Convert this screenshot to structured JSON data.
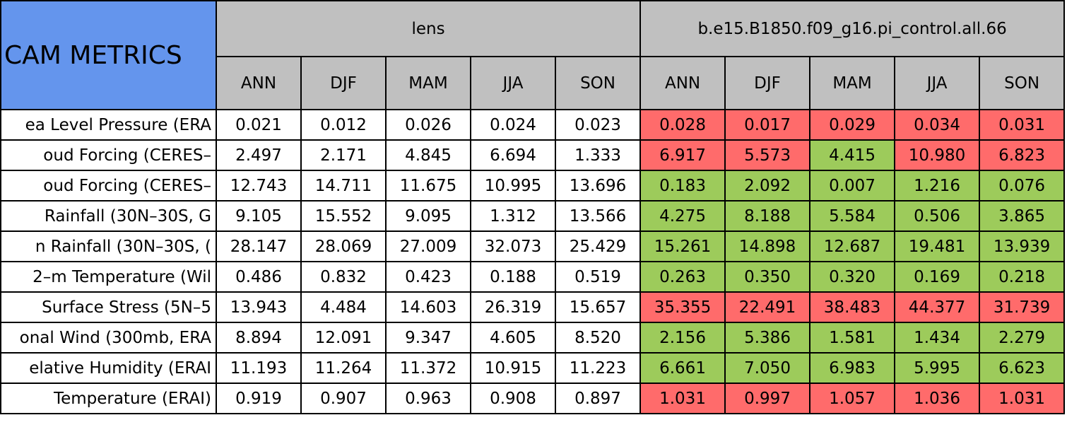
{
  "header": {
    "title": "CAM METRICS",
    "groups": [
      "lens",
      "b.e15.B1850.f09_g16.pi_control.all.66"
    ],
    "seasons": [
      [
        "ANN",
        "DJF",
        "MAM",
        "JJA",
        "SON"
      ],
      [
        "ANN",
        "DJF",
        "MAM",
        "JJA",
        "SON"
      ]
    ],
    "title_color": "#6495ed",
    "header_color": "#c0c0c0"
  },
  "table": {
    "rows": [
      {
        "label": "ea Level Pressure (ERA",
        "values": [
          "0.021",
          "0.012",
          "0.026",
          "0.024",
          "0.023",
          "0.028",
          "0.017",
          "0.029",
          "0.034",
          "0.031"
        ],
        "colors": [
          "#ffffff",
          "#ffffff",
          "#ffffff",
          "#ffffff",
          "#ffffff",
          "#ff6b6b",
          "#ff6b6b",
          "#ff6b6b",
          "#ff6b6b",
          "#ff6b6b"
        ]
      },
      {
        "label": "oud Forcing (CERES–",
        "values": [
          "2.497",
          "2.171",
          "4.845",
          "6.694",
          "1.333",
          "6.917",
          "5.573",
          "4.415",
          "10.980",
          "6.823"
        ],
        "colors": [
          "#ffffff",
          "#ffffff",
          "#ffffff",
          "#ffffff",
          "#ffffff",
          "#ff6b6b",
          "#ff6b6b",
          "#9dcb5b",
          "#ff6b6b",
          "#ff6b6b"
        ]
      },
      {
        "label": "oud Forcing (CERES–",
        "values": [
          "12.743",
          "14.711",
          "11.675",
          "10.995",
          "13.696",
          "0.183",
          "2.092",
          "0.007",
          "1.216",
          "0.076"
        ],
        "colors": [
          "#ffffff",
          "#ffffff",
          "#ffffff",
          "#ffffff",
          "#ffffff",
          "#9dcb5b",
          "#9dcb5b",
          "#9dcb5b",
          "#9dcb5b",
          "#9dcb5b"
        ]
      },
      {
        "label": "Rainfall (30N–30S, G",
        "values": [
          "9.105",
          "15.552",
          "9.095",
          "1.312",
          "13.566",
          "4.275",
          "8.188",
          "5.584",
          "0.506",
          "3.865"
        ],
        "colors": [
          "#ffffff",
          "#ffffff",
          "#ffffff",
          "#ffffff",
          "#ffffff",
          "#9dcb5b",
          "#9dcb5b",
          "#9dcb5b",
          "#9dcb5b",
          "#9dcb5b"
        ]
      },
      {
        "label": "n Rainfall (30N–30S, (",
        "values": [
          "28.147",
          "28.069",
          "27.009",
          "32.073",
          "25.429",
          "15.261",
          "14.898",
          "12.687",
          "19.481",
          "13.939"
        ],
        "colors": [
          "#ffffff",
          "#ffffff",
          "#ffffff",
          "#ffffff",
          "#ffffff",
          "#9dcb5b",
          "#9dcb5b",
          "#9dcb5b",
          "#9dcb5b",
          "#9dcb5b"
        ]
      },
      {
        "label": "2–m Temperature (Wil",
        "values": [
          "0.486",
          "0.832",
          "0.423",
          "0.188",
          "0.519",
          "0.263",
          "0.350",
          "0.320",
          "0.169",
          "0.218"
        ],
        "colors": [
          "#ffffff",
          "#ffffff",
          "#ffffff",
          "#ffffff",
          "#ffffff",
          "#9dcb5b",
          "#9dcb5b",
          "#9dcb5b",
          "#9dcb5b",
          "#9dcb5b"
        ]
      },
      {
        "label": "Surface Stress (5N–5",
        "values": [
          "13.943",
          "4.484",
          "14.603",
          "26.319",
          "15.657",
          "35.355",
          "22.491",
          "38.483",
          "44.377",
          "31.739"
        ],
        "colors": [
          "#ffffff",
          "#ffffff",
          "#ffffff",
          "#ffffff",
          "#ffffff",
          "#ff6b6b",
          "#ff6b6b",
          "#ff6b6b",
          "#ff6b6b",
          "#ff6b6b"
        ]
      },
      {
        "label": "onal Wind (300mb, ERA",
        "values": [
          "8.894",
          "12.091",
          "9.347",
          "4.605",
          "8.520",
          "2.156",
          "5.386",
          "1.581",
          "1.434",
          "2.279"
        ],
        "colors": [
          "#ffffff",
          "#ffffff",
          "#ffffff",
          "#ffffff",
          "#ffffff",
          "#9dcb5b",
          "#9dcb5b",
          "#9dcb5b",
          "#9dcb5b",
          "#9dcb5b"
        ]
      },
      {
        "label": "elative Humidity (ERAI",
        "values": [
          "11.193",
          "11.264",
          "11.372",
          "10.915",
          "11.223",
          "6.661",
          "7.050",
          "6.983",
          "5.995",
          "6.623"
        ],
        "colors": [
          "#ffffff",
          "#ffffff",
          "#ffffff",
          "#ffffff",
          "#ffffff",
          "#9dcb5b",
          "#9dcb5b",
          "#9dcb5b",
          "#9dcb5b",
          "#9dcb5b"
        ]
      },
      {
        "label": "Temperature (ERAI)",
        "values": [
          "0.919",
          "0.907",
          "0.963",
          "0.908",
          "0.897",
          "1.031",
          "0.997",
          "1.057",
          "1.036",
          "1.031"
        ],
        "colors": [
          "#ffffff",
          "#ffffff",
          "#ffffff",
          "#ffffff",
          "#ffffff",
          "#ff6b6b",
          "#ff6b6b",
          "#ff6b6b",
          "#ff6b6b",
          "#ff6b6b"
        ]
      }
    ]
  }
}
